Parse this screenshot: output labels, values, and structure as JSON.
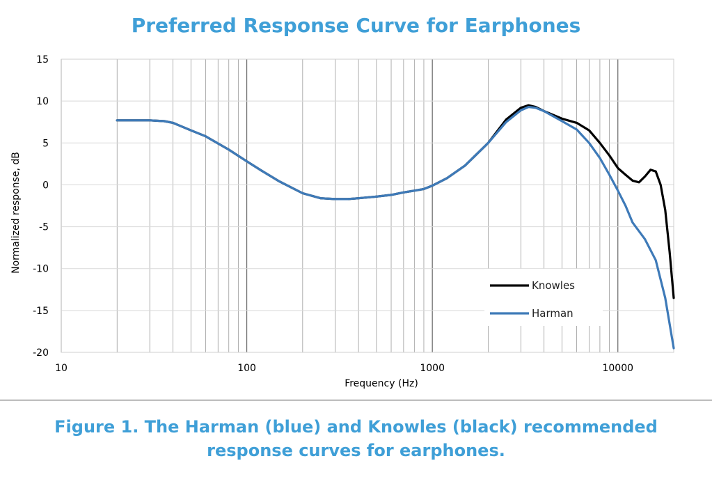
{
  "chart_data": {
    "type": "line",
    "title": "Preferred Response Curve for Earphones",
    "xlabel": "Frequency (Hz)",
    "ylabel": "Normalized response, dB",
    "xscale": "log",
    "xlim": [
      10,
      20000
    ],
    "ylim": [
      -20,
      15
    ],
    "xticks": [
      10,
      100,
      1000,
      10000
    ],
    "xtick_labels": [
      "10",
      "100",
      "1000",
      "10000"
    ],
    "yticks": [
      15,
      10,
      5,
      0,
      -5,
      -10,
      -15,
      -20
    ],
    "ytick_labels": [
      "15",
      "10",
      "5",
      "0",
      "-5",
      "-10",
      "-15",
      "-20"
    ],
    "grid": true,
    "legend_position": "bottom-right",
    "series": [
      {
        "name": "Knowles",
        "color": "#000000",
        "points": [
          [
            20,
            7.7
          ],
          [
            30,
            7.7
          ],
          [
            36,
            7.6
          ],
          [
            40,
            7.4
          ],
          [
            50,
            6.5
          ],
          [
            60,
            5.8
          ],
          [
            80,
            4.2
          ],
          [
            100,
            2.8
          ],
          [
            120,
            1.7
          ],
          [
            150,
            0.4
          ],
          [
            200,
            -1.0
          ],
          [
            250,
            -1.6
          ],
          [
            300,
            -1.7
          ],
          [
            350,
            -1.7
          ],
          [
            400,
            -1.6
          ],
          [
            500,
            -1.4
          ],
          [
            600,
            -1.2
          ],
          [
            700,
            -0.9
          ],
          [
            800,
            -0.7
          ],
          [
            900,
            -0.5
          ],
          [
            1000,
            -0.1
          ],
          [
            1200,
            0.8
          ],
          [
            1500,
            2.3
          ],
          [
            2000,
            5.0
          ],
          [
            2500,
            7.8
          ],
          [
            3000,
            9.2
          ],
          [
            3300,
            9.5
          ],
          [
            3600,
            9.3
          ],
          [
            4000,
            8.8
          ],
          [
            5000,
            7.9
          ],
          [
            6000,
            7.4
          ],
          [
            7000,
            6.5
          ],
          [
            8000,
            5.0
          ],
          [
            9000,
            3.5
          ],
          [
            10000,
            2.0
          ],
          [
            11000,
            1.2
          ],
          [
            12000,
            0.5
          ],
          [
            13000,
            0.3
          ],
          [
            14000,
            1.0
          ],
          [
            15000,
            1.8
          ],
          [
            16000,
            1.6
          ],
          [
            17000,
            0.0
          ],
          [
            18000,
            -3.0
          ],
          [
            19000,
            -8.0
          ],
          [
            20000,
            -13.5
          ]
        ]
      },
      {
        "name": "Harman",
        "color": "#3e7ab8",
        "points": [
          [
            20,
            7.7
          ],
          [
            30,
            7.7
          ],
          [
            36,
            7.6
          ],
          [
            40,
            7.4
          ],
          [
            50,
            6.5
          ],
          [
            60,
            5.8
          ],
          [
            80,
            4.2
          ],
          [
            100,
            2.8
          ],
          [
            120,
            1.7
          ],
          [
            150,
            0.4
          ],
          [
            200,
            -1.0
          ],
          [
            250,
            -1.6
          ],
          [
            300,
            -1.7
          ],
          [
            350,
            -1.7
          ],
          [
            400,
            -1.6
          ],
          [
            500,
            -1.4
          ],
          [
            600,
            -1.2
          ],
          [
            700,
            -0.9
          ],
          [
            800,
            -0.7
          ],
          [
            900,
            -0.5
          ],
          [
            1000,
            -0.1
          ],
          [
            1200,
            0.8
          ],
          [
            1500,
            2.3
          ],
          [
            2000,
            5.0
          ],
          [
            2500,
            7.5
          ],
          [
            3000,
            8.9
          ],
          [
            3300,
            9.3
          ],
          [
            3600,
            9.2
          ],
          [
            4000,
            8.8
          ],
          [
            5000,
            7.6
          ],
          [
            6000,
            6.6
          ],
          [
            7000,
            5.0
          ],
          [
            8000,
            3.2
          ],
          [
            9000,
            1.2
          ],
          [
            10000,
            -0.7
          ],
          [
            11000,
            -2.5
          ],
          [
            12000,
            -4.5
          ],
          [
            14000,
            -6.5
          ],
          [
            16000,
            -9.0
          ],
          [
            18000,
            -13.5
          ],
          [
            20000,
            -19.5
          ]
        ]
      }
    ]
  },
  "caption": {
    "line1": "Figure 1.  The Harman (blue) and Knowles (black) recommended",
    "line2": "response curves for earphones."
  }
}
